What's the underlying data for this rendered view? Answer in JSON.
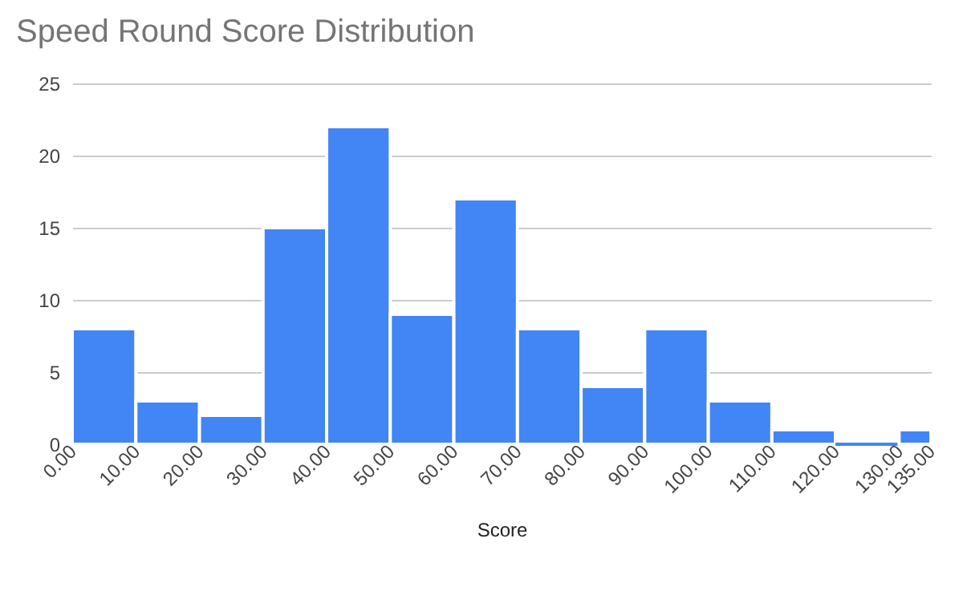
{
  "chart_data": {
    "type": "histogram",
    "title": "Speed Round Score Distribution",
    "xlabel": "Score",
    "bins": [
      0,
      10,
      20,
      30,
      40,
      50,
      60,
      70,
      80,
      90,
      100,
      110,
      120,
      130,
      135
    ],
    "values": [
      8,
      3,
      2,
      15,
      22,
      9,
      17,
      8,
      4,
      8,
      3,
      1,
      0,
      1
    ],
    "color": "#4285f4",
    "xlim": [
      0,
      135
    ],
    "xticks": [
      {
        "value": 0,
        "label": "0.00"
      },
      {
        "value": 10,
        "label": "10.00"
      },
      {
        "value": 20,
        "label": "20.00"
      },
      {
        "value": 30,
        "label": "30.00"
      },
      {
        "value": 40,
        "label": "40.00"
      },
      {
        "value": 50,
        "label": "50.00"
      },
      {
        "value": 60,
        "label": "60.00"
      },
      {
        "value": 70,
        "label": "70.00"
      },
      {
        "value": 80,
        "label": "80.00"
      },
      {
        "value": 90,
        "label": "90.00"
      },
      {
        "value": 100,
        "label": "100.00"
      },
      {
        "value": 110,
        "label": "110.00"
      },
      {
        "value": 120,
        "label": "120.00"
      },
      {
        "value": 130,
        "label": "130.00"
      },
      {
        "value": 135,
        "label": "135.00"
      }
    ],
    "ylim": [
      0,
      25
    ],
    "yticks": [
      0,
      5,
      10,
      15,
      20,
      25
    ],
    "grid": "y"
  }
}
